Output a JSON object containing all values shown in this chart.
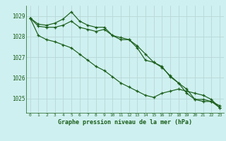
{
  "title": "Graphe pression niveau de la mer (hPa)",
  "bg_color": "#cff0f0",
  "grid_color": "#b8d8d8",
  "line_color": "#1a5e1a",
  "hours": [
    0,
    1,
    2,
    3,
    4,
    5,
    6,
    7,
    8,
    9,
    10,
    11,
    12,
    13,
    14,
    15,
    16,
    17,
    18,
    19,
    20,
    21,
    22,
    23
  ],
  "series1": [
    1028.9,
    1028.6,
    1028.55,
    1028.65,
    1028.85,
    1029.2,
    1028.75,
    1028.55,
    1028.45,
    1028.45,
    1028.05,
    1027.85,
    1027.85,
    1027.45,
    1026.85,
    1026.75,
    1026.5,
    1026.1,
    1025.75,
    1025.45,
    1024.95,
    1024.85,
    1024.85,
    1024.65
  ],
  "series2": [
    1028.9,
    1028.5,
    1028.45,
    1028.45,
    1028.55,
    1028.75,
    1028.45,
    1028.35,
    1028.25,
    1028.35,
    1028.05,
    1027.95,
    1027.85,
    1027.55,
    1027.15,
    1026.75,
    1026.55,
    1026.05,
    1025.75,
    1025.25,
    1024.95,
    1024.95,
    1024.85,
    1024.55
  ],
  "series3": [
    1028.9,
    1028.05,
    1027.85,
    1027.75,
    1027.6,
    1027.45,
    1027.15,
    1026.85,
    1026.55,
    1026.35,
    1026.05,
    1025.75,
    1025.55,
    1025.35,
    1025.15,
    1025.05,
    1025.25,
    1025.35,
    1025.45,
    1025.35,
    1025.25,
    1025.15,
    1024.95,
    1024.55
  ],
  "ylim_min": 1024.3,
  "ylim_max": 1029.5,
  "yticks": [
    1025,
    1026,
    1027,
    1028,
    1029
  ],
  "xticks": [
    0,
    1,
    2,
    3,
    4,
    5,
    6,
    7,
    8,
    9,
    10,
    11,
    12,
    13,
    14,
    15,
    16,
    17,
    18,
    19,
    20,
    21,
    22,
    23
  ],
  "xlabel_fontsize": 6.0,
  "ytick_fontsize": 5.5,
  "xtick_fontsize": 4.5
}
